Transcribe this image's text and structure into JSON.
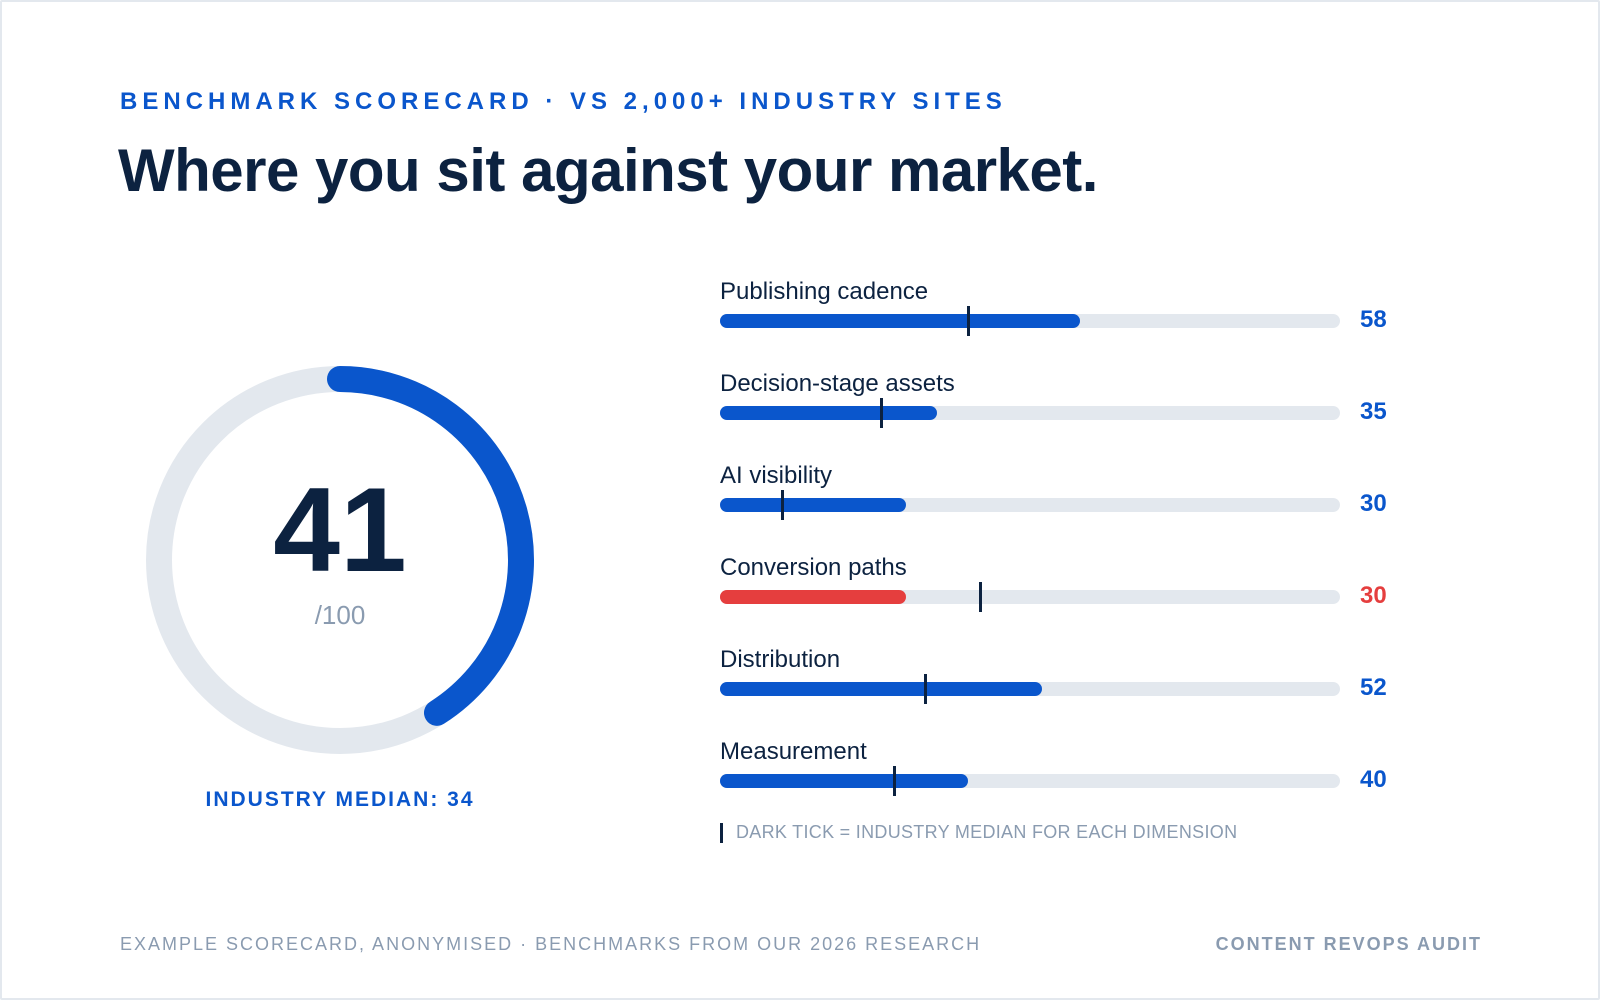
{
  "header": {
    "eyebrow": "BENCHMARK SCORECARD · VS 2,000+ INDUSTRY SITES",
    "title": "Where you sit against your market."
  },
  "colors": {
    "accent": "#0a56cc",
    "alert": "#e53e3e",
    "track": "#e3e8ee",
    "ink": "#0c2240",
    "muted": "#8a9bb0"
  },
  "chart_data": [
    {
      "type": "gauge",
      "value": 41,
      "max": 100,
      "score_text": "41",
      "max_label": "/100",
      "median_label": "INDUSTRY MEDIAN: 34",
      "median": 34
    },
    {
      "type": "bar",
      "orientation": "horizontal",
      "range": [
        0,
        100
      ],
      "categories": [
        "Publishing cadence",
        "Decision-stage assets",
        "AI visibility",
        "Conversion paths",
        "Distribution",
        "Measurement"
      ],
      "values": [
        58,
        35,
        30,
        30,
        52,
        40
      ],
      "value_labels": [
        "58",
        "35",
        "30",
        "30",
        "52",
        "40"
      ],
      "medians": [
        40,
        26,
        10,
        42,
        33,
        28
      ],
      "highlight": [
        false,
        false,
        false,
        true,
        false,
        false
      ],
      "legend": "DARK TICK = INDUSTRY MEDIAN FOR EACH DIMENSION"
    }
  ],
  "footer": {
    "left": "EXAMPLE SCORECARD, ANONYMISED · BENCHMARKS FROM OUR 2026 RESEARCH",
    "right": "CONTENT REVOPS AUDIT"
  }
}
